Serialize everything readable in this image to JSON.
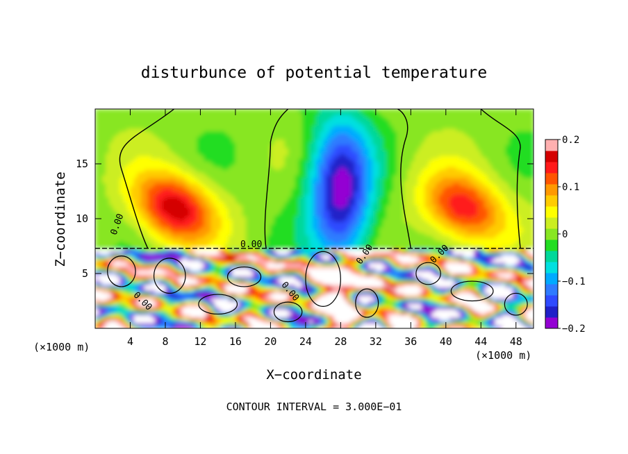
{
  "chart_data": {
    "type": "heatmap",
    "title": "disturbunce of potential temperature",
    "xlabel": "X−coordinate",
    "ylabel": "Z−coordinate",
    "x_unit": "(×1000 m)",
    "y_unit": "(×1000 m)",
    "xlim": [
      0,
      50
    ],
    "ylim": [
      0,
      20
    ],
    "x_ticks": [
      4,
      8,
      12,
      16,
      20,
      24,
      28,
      32,
      36,
      40,
      44,
      48
    ],
    "y_ticks": [
      5,
      10,
      15
    ],
    "colorbar": {
      "range": [
        -0.2,
        0.2
      ],
      "tick_values": [
        0.2,
        0.1,
        0,
        -0.1,
        -0.2
      ],
      "tick_labels": [
        "0.2",
        "0.1",
        "0",
        "−0.1",
        "−0.2"
      ],
      "colors": [
        "#9400d3",
        "#2020c8",
        "#2f4bff",
        "#2f7bff",
        "#00aaff",
        "#00e0e0",
        "#00d89a",
        "#22dd22",
        "#88e622",
        "#ccee22",
        "#ffff00",
        "#ffcc00",
        "#ff9900",
        "#ff5500",
        "#ff1a1a",
        "#d40000",
        "#ffb0b0"
      ]
    },
    "contour_label": "0.00",
    "footnote": "CONTOUR INTERVAL = 3.000E−01",
    "features": {
      "background_value": 0.0,
      "inversion_height_km": 7.3,
      "warm_plumes": [
        {
          "x": 9,
          "z": 11,
          "amp": 0.17
        },
        {
          "x": 42,
          "z": 11,
          "amp": 0.15
        }
      ],
      "cold_column": {
        "x": 28,
        "z": 12.5,
        "amp": -0.19
      }
    }
  }
}
